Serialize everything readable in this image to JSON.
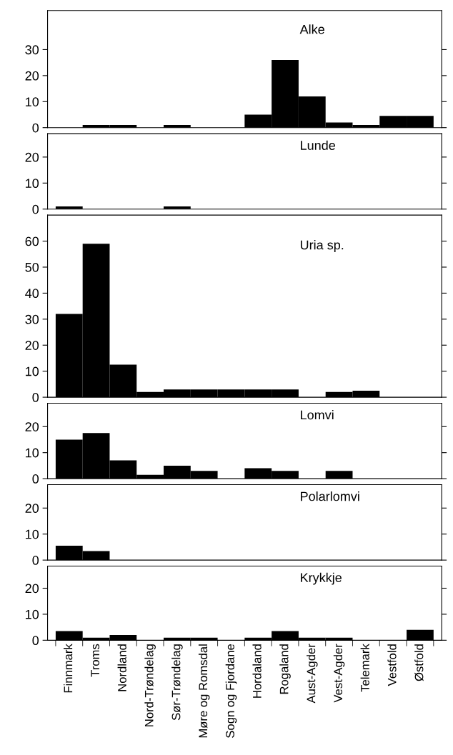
{
  "chart_data": [
    {
      "type": "bar",
      "title": "Alke",
      "categories": [
        null,
        null,
        null,
        null,
        null,
        null,
        null,
        null,
        null,
        null,
        null,
        null,
        null,
        null
      ],
      "values": [
        0,
        1,
        1,
        0,
        1,
        0,
        0,
        5,
        26,
        12,
        2,
        1,
        4.5,
        4.5
      ],
      "color": "#000000",
      "ylim": [
        0,
        45
      ],
      "yticks": [
        0,
        10,
        20,
        30
      ],
      "tick_labels": "y",
      "grid": false,
      "legend": false
    },
    {
      "type": "bar",
      "title": "Lunde",
      "categories": [
        null,
        null,
        null,
        null,
        null,
        null,
        null,
        null,
        null,
        null,
        null,
        null,
        null,
        null
      ],
      "values": [
        1,
        0,
        0,
        0,
        1,
        0,
        0,
        0,
        0,
        0,
        0,
        0,
        0,
        0
      ],
      "color": "#000000",
      "ylim": [
        0,
        29
      ],
      "yticks": [
        0,
        10,
        20
      ],
      "tick_labels": "y",
      "grid": false,
      "legend": false
    },
    {
      "type": "bar",
      "title": "Uria sp.",
      "categories": [
        null,
        null,
        null,
        null,
        null,
        null,
        null,
        null,
        null,
        null,
        null,
        null,
        null,
        null
      ],
      "values": [
        32,
        59,
        12.5,
        2,
        3,
        3,
        3,
        3,
        3,
        0,
        2,
        2.5,
        0,
        0
      ],
      "color": "#000000",
      "ylim": [
        0,
        70
      ],
      "yticks": [
        0,
        10,
        20,
        30,
        40,
        50,
        60
      ],
      "tick_labels": "y",
      "grid": false,
      "legend": false
    },
    {
      "type": "bar",
      "title": "Lomvi",
      "categories": [
        null,
        null,
        null,
        null,
        null,
        null,
        null,
        null,
        null,
        null,
        null,
        null,
        null,
        null
      ],
      "values": [
        15,
        17.5,
        7,
        1.5,
        5,
        3,
        0,
        4,
        3,
        0,
        3,
        0,
        0,
        0
      ],
      "color": "#000000",
      "ylim": [
        0,
        29
      ],
      "yticks": [
        0,
        10,
        20
      ],
      "tick_labels": "y",
      "grid": false,
      "legend": false
    },
    {
      "type": "bar",
      "title": "Polarlomvi",
      "categories": [
        null,
        null,
        null,
        null,
        null,
        null,
        null,
        null,
        null,
        null,
        null,
        null,
        null,
        null
      ],
      "values": [
        5.5,
        3.5,
        0,
        0,
        0,
        0,
        0,
        0,
        0,
        0,
        0,
        0,
        0,
        0
      ],
      "color": "#000000",
      "ylim": [
        0,
        29
      ],
      "yticks": [
        0,
        10,
        20
      ],
      "tick_labels": "y",
      "grid": false,
      "legend": false
    },
    {
      "type": "bar",
      "title": "Krykkje",
      "categories": [
        "Finnmark",
        "Troms",
        "Nordland",
        "Nord-Trøndelag",
        "Sør-Trøndelag",
        "Møre og Romsdal",
        "Sogn og Fjordane",
        "Hordaland",
        "Rogaland",
        "Aust-Agder",
        "Vest-Agder",
        "Telemark",
        "Vestfold",
        "Østfold"
      ],
      "values": [
        3.5,
        1,
        2,
        0,
        1,
        1,
        0,
        1,
        3.5,
        1,
        1,
        0,
        0,
        4
      ],
      "color": "#000000",
      "ylim": [
        0,
        28.5
      ],
      "yticks": [
        0,
        10,
        20
      ],
      "grid": false,
      "legend": false
    }
  ]
}
